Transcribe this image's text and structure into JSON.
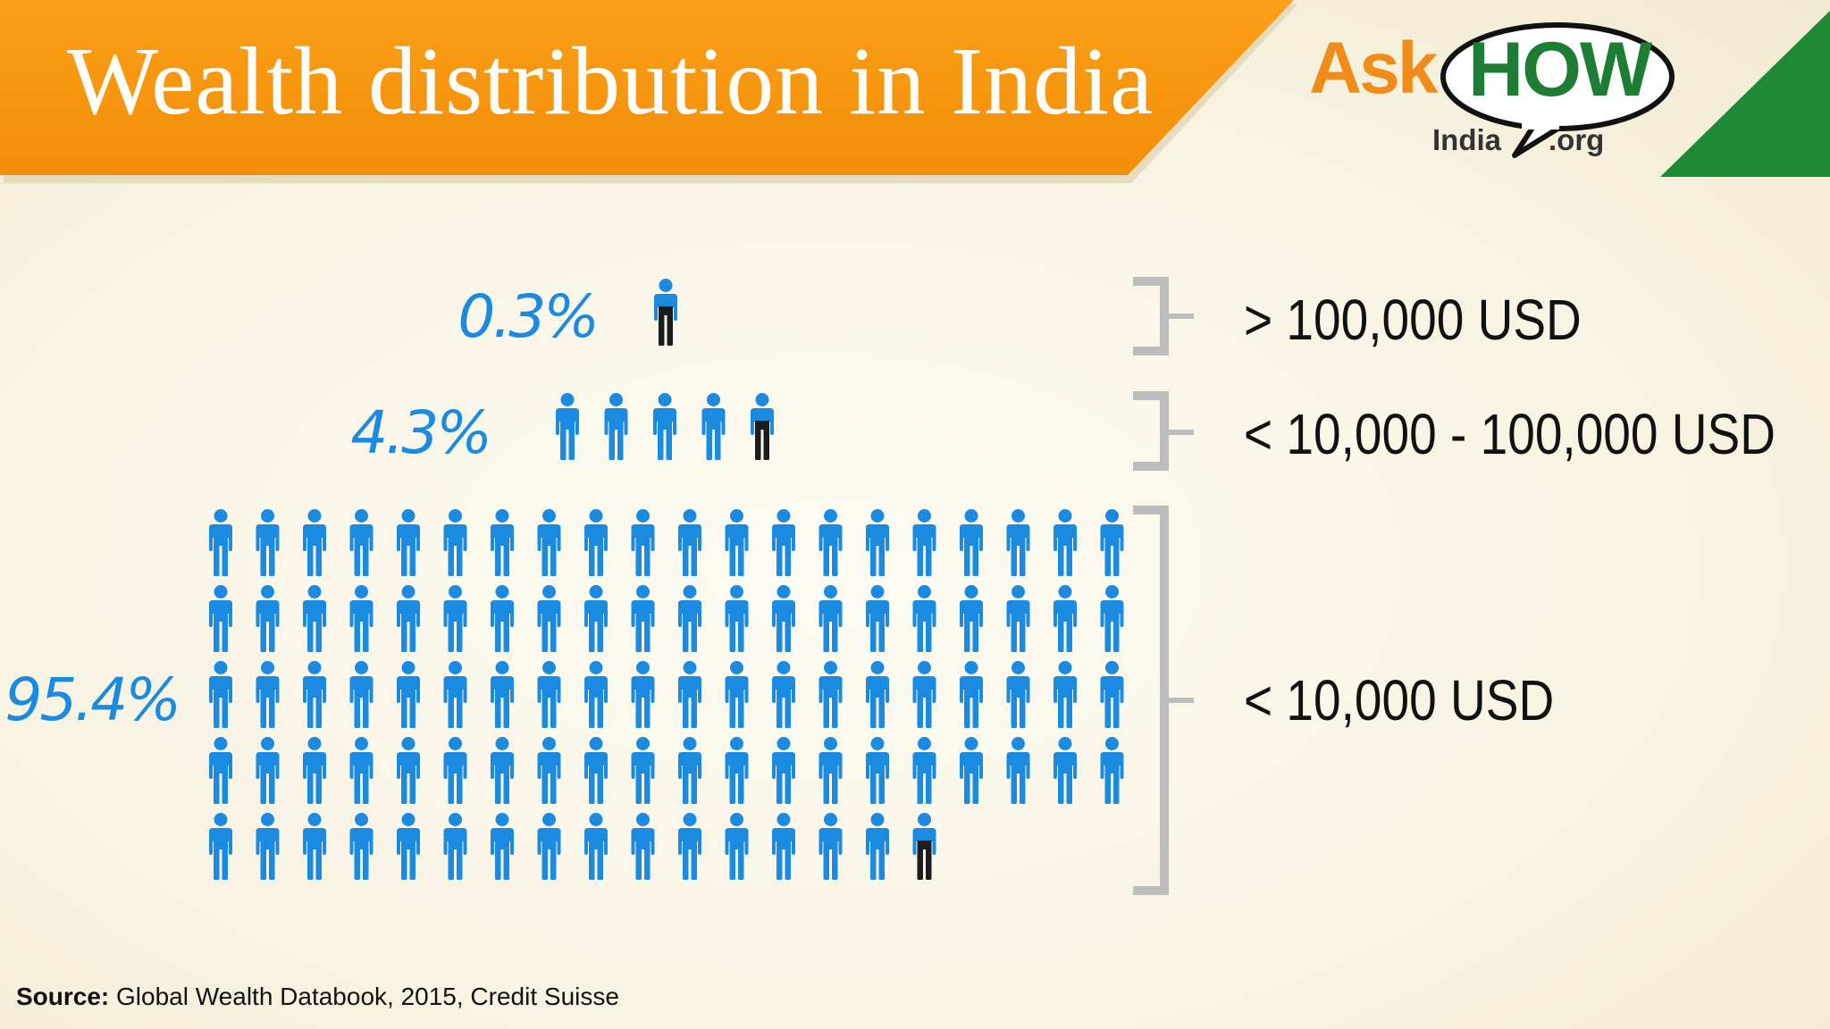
{
  "title": "Wealth distribution in India",
  "logo": {
    "ask": "Ask",
    "how": "HOW",
    "india": "India",
    "org": ".org"
  },
  "source": {
    "label": "Source:",
    "text": "Global Wealth Databook, 2015, Credit Suisse"
  },
  "colors": {
    "banner": "#f8960e",
    "corner": "#1f8a36",
    "person": "#1a8be0",
    "person_highlight_bottom": "#1c1c1c",
    "percent_text": "#1a8be0",
    "bracket": "#bdbdbd",
    "label_text": "#111111"
  },
  "chart_data": {
    "type": "pictograph",
    "unit": "1 icon = 1 percent of adults",
    "groups": [
      {
        "percent_label": "0.3%",
        "value": 0.3,
        "icons": 1,
        "wealth_band": "> 100,000 USD"
      },
      {
        "percent_label": "4.3%",
        "value": 4.3,
        "icons": 5,
        "wealth_band": "< 10,000 - 100,000 USD"
      },
      {
        "percent_label": "95.4%",
        "value": 95.4,
        "icons": 96,
        "wealth_band": "< 10,000 USD"
      }
    ]
  }
}
